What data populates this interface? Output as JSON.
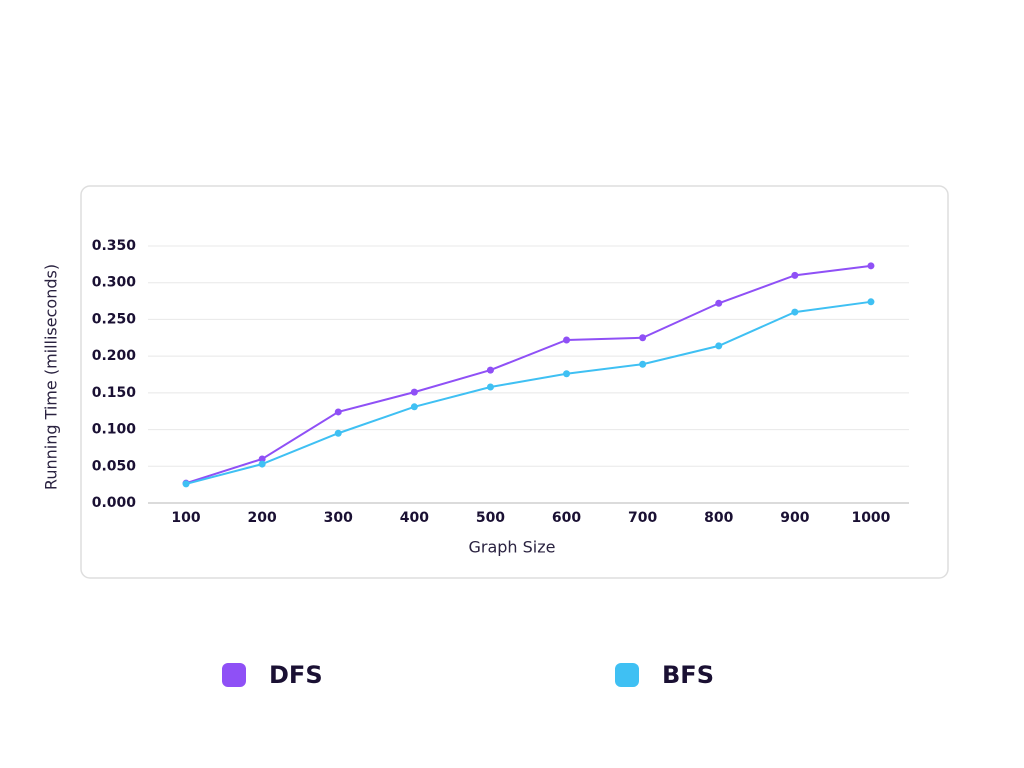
{
  "chart_data": {
    "type": "line",
    "x_label": "Graph Size",
    "y_label": "Running Time (milliseconds)",
    "categories": [
      "100",
      "200",
      "300",
      "400",
      "500",
      "600",
      "700",
      "800",
      "900",
      "1000"
    ],
    "series": [
      {
        "name": "DFS",
        "color": "#8f50f6",
        "values": [
          0.027,
          0.06,
          0.124,
          0.151,
          0.181,
          0.222,
          0.225,
          0.272,
          0.31,
          0.323
        ]
      },
      {
        "name": "BFS",
        "color": "#3fc0f3",
        "values": [
          0.026,
          0.053,
          0.095,
          0.131,
          0.158,
          0.176,
          0.189,
          0.214,
          0.26,
          0.274
        ]
      }
    ],
    "ylim": [
      0,
      0.35
    ],
    "yticks": [
      {
        "value": 0,
        "label": "0.000"
      },
      {
        "value": 0.05,
        "label": "0.050"
      },
      {
        "value": 0.1,
        "label": "0.100"
      },
      {
        "value": 0.15,
        "label": "0.150"
      },
      {
        "value": 0.2,
        "label": "0.200"
      },
      {
        "value": 0.25,
        "label": "0.250"
      },
      {
        "value": 0.3,
        "label": "0.300"
      },
      {
        "value": 0.35,
        "label": "0.350"
      }
    ],
    "grid": true
  }
}
